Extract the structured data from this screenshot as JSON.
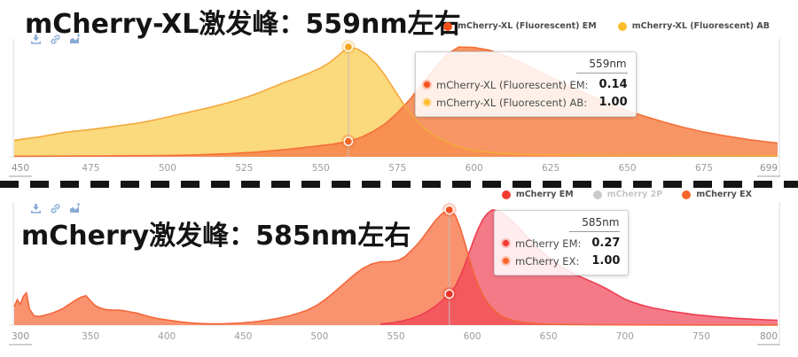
{
  "toolbar": {
    "icons": [
      "download-icon",
      "link-icon",
      "chart-add-icon"
    ],
    "icon_color": "#88abd6"
  },
  "divider": {
    "type": "dashed",
    "color": "#141414"
  },
  "chart_data": [
    {
      "type": "area",
      "title": "mCherry-XL激发峰：559nm左右",
      "x_axis": {
        "min": 450,
        "max": 699,
        "unit": "nm",
        "ticks": [
          450,
          475,
          500,
          525,
          550,
          575,
          600,
          625,
          650,
          675,
          699
        ]
      },
      "y_axis": {
        "min": 0,
        "max": 1,
        "visible": false
      },
      "legend_position": "top-right",
      "grid": false,
      "legend": [
        {
          "label": "mCherry-XL (Fluorescent) EM",
          "color": "#f4511e",
          "muted": false
        },
        {
          "label": "mCherry-XL (Fluorescent) AB",
          "color": "#fbbd2c",
          "muted": false
        }
      ],
      "series": [
        {
          "name": "mCherry-XL (Fluorescent) AB",
          "fill": "#fbd776",
          "stroke": "#f3a93e",
          "fill_opacity": 0.95,
          "points": [
            [
              450,
              0.15
            ],
            [
              455,
              0.17
            ],
            [
              458,
              0.18
            ],
            [
              462,
              0.2
            ],
            [
              466,
              0.22
            ],
            [
              470,
              0.235
            ],
            [
              474,
              0.245
            ],
            [
              478,
              0.26
            ],
            [
              482,
              0.275
            ],
            [
              486,
              0.29
            ],
            [
              490,
              0.305
            ],
            [
              494,
              0.325
            ],
            [
              498,
              0.35
            ],
            [
              502,
              0.375
            ],
            [
              506,
              0.4
            ],
            [
              510,
              0.425
            ],
            [
              514,
              0.45
            ],
            [
              518,
              0.48
            ],
            [
              522,
              0.51
            ],
            [
              526,
              0.545
            ],
            [
              530,
              0.585
            ],
            [
              534,
              0.63
            ],
            [
              538,
              0.675
            ],
            [
              542,
              0.715
            ],
            [
              546,
              0.76
            ],
            [
              550,
              0.81
            ],
            [
              553,
              0.86
            ],
            [
              556,
              0.93
            ],
            [
              559,
              1.0
            ],
            [
              562,
              0.98
            ],
            [
              565,
              0.93
            ],
            [
              568,
              0.85
            ],
            [
              571,
              0.74
            ],
            [
              574,
              0.61
            ],
            [
              577,
              0.48
            ],
            [
              580,
              0.37
            ],
            [
              583,
              0.28
            ],
            [
              586,
              0.21
            ],
            [
              590,
              0.15
            ],
            [
              594,
              0.1
            ],
            [
              598,
              0.07
            ],
            [
              602,
              0.05
            ],
            [
              608,
              0.035
            ],
            [
              615,
              0.025
            ],
            [
              625,
              0.018
            ],
            [
              640,
              0.014
            ],
            [
              660,
              0.012
            ],
            [
              680,
              0.011
            ],
            [
              699,
              0.01
            ]
          ]
        },
        {
          "name": "mCherry-XL (Fluorescent) EM",
          "fill": "#f6824a",
          "stroke": "#f47038",
          "fill_opacity": 0.85,
          "points": [
            [
              450,
              0.005
            ],
            [
              480,
              0.008
            ],
            [
              500,
              0.012
            ],
            [
              510,
              0.018
            ],
            [
              520,
              0.028
            ],
            [
              530,
              0.045
            ],
            [
              540,
              0.07
            ],
            [
              548,
              0.095
            ],
            [
              554,
              0.115
            ],
            [
              559,
              0.14
            ],
            [
              563,
              0.175
            ],
            [
              567,
              0.23
            ],
            [
              571,
              0.3
            ],
            [
              575,
              0.4
            ],
            [
              579,
              0.52
            ],
            [
              583,
              0.66
            ],
            [
              587,
              0.8
            ],
            [
              591,
              0.93
            ],
            [
              595,
              1.0
            ],
            [
              600,
              0.995
            ],
            [
              605,
              0.97
            ],
            [
              611,
              0.91
            ],
            [
              616,
              0.85
            ],
            [
              621,
              0.78
            ],
            [
              627,
              0.7
            ],
            [
              633,
              0.62
            ],
            [
              639,
              0.545
            ],
            [
              645,
              0.475
            ],
            [
              650,
              0.42
            ],
            [
              656,
              0.365
            ],
            [
              662,
              0.315
            ],
            [
              668,
              0.27
            ],
            [
              675,
              0.225
            ],
            [
              682,
              0.19
            ],
            [
              690,
              0.155
            ],
            [
              699,
              0.125
            ]
          ]
        }
      ],
      "hover": {
        "wavelength_nm": 559,
        "line_color": "#bdbdbd",
        "markers": [
          {
            "series": "mCherry-XL (Fluorescent) AB",
            "value": 1.0,
            "color": "#f5a623"
          },
          {
            "series": "mCherry-XL (Fluorescent) EM",
            "value": 0.14,
            "color": "#f26722"
          }
        ]
      },
      "tooltip": {
        "header": "559nm",
        "rows": [
          {
            "label": "mCherry-XL (Fluorescent) EM:",
            "value": "0.14",
            "color": "#f4511e"
          },
          {
            "label": "mCherry-XL (Fluorescent) AB:",
            "value": "1.00",
            "color": "#fbbd2c"
          }
        ]
      }
    },
    {
      "type": "area",
      "title": "mCherry激发峰：585nm左右",
      "x_axis": {
        "min": 300,
        "max": 800,
        "unit": "nm",
        "ticks": [
          300,
          350,
          400,
          450,
          500,
          550,
          600,
          650,
          700,
          750,
          800
        ]
      },
      "y_axis": {
        "min": 0,
        "max": 1,
        "visible": false
      },
      "legend_position": "top-right",
      "grid": false,
      "legend": [
        {
          "label": "mCherry EM",
          "color": "#f23b2f",
          "muted": false
        },
        {
          "label": "mCherry 2P",
          "color": "#c9c9c9",
          "muted": true
        },
        {
          "label": "mCherry EX",
          "color": "#f9662b",
          "muted": false
        }
      ],
      "series": [
        {
          "name": "mCherry EX",
          "fill": "#f8875f",
          "stroke": "#f4663a",
          "fill_opacity": 0.9,
          "points": [
            [
              300,
              0.16
            ],
            [
              302,
              0.22
            ],
            [
              304,
              0.18
            ],
            [
              306,
              0.25
            ],
            [
              308,
              0.28
            ],
            [
              310,
              0.14
            ],
            [
              313,
              0.08
            ],
            [
              316,
              0.075
            ],
            [
              320,
              0.085
            ],
            [
              324,
              0.1
            ],
            [
              328,
              0.12
            ],
            [
              332,
              0.145
            ],
            [
              336,
              0.18
            ],
            [
              340,
              0.215
            ],
            [
              344,
              0.245
            ],
            [
              347,
              0.255
            ],
            [
              350,
              0.21
            ],
            [
              353,
              0.17
            ],
            [
              356,
              0.15
            ],
            [
              360,
              0.135
            ],
            [
              364,
              0.13
            ],
            [
              368,
              0.13
            ],
            [
              372,
              0.125
            ],
            [
              376,
              0.115
            ],
            [
              380,
              0.105
            ],
            [
              384,
              0.09
            ],
            [
              388,
              0.075
            ],
            [
              392,
              0.062
            ],
            [
              396,
              0.052
            ],
            [
              400,
              0.045
            ],
            [
              405,
              0.035
            ],
            [
              410,
              0.027
            ],
            [
              415,
              0.02
            ],
            [
              420,
              0.015
            ],
            [
              425,
              0.012
            ],
            [
              430,
              0.011
            ],
            [
              435,
              0.011
            ],
            [
              440,
              0.013
            ],
            [
              445,
              0.016
            ],
            [
              450,
              0.02
            ],
            [
              456,
              0.027
            ],
            [
              462,
              0.036
            ],
            [
              468,
              0.048
            ],
            [
              474,
              0.062
            ],
            [
              480,
              0.08
            ],
            [
              486,
              0.103
            ],
            [
              492,
              0.13
            ],
            [
              498,
              0.17
            ],
            [
              504,
              0.225
            ],
            [
              510,
              0.29
            ],
            [
              516,
              0.36
            ],
            [
              522,
              0.43
            ],
            [
              528,
              0.49
            ],
            [
              534,
              0.53
            ],
            [
              540,
              0.55
            ],
            [
              546,
              0.55
            ],
            [
              552,
              0.565
            ],
            [
              556,
              0.595
            ],
            [
              560,
              0.645
            ],
            [
              564,
              0.7
            ],
            [
              568,
              0.765
            ],
            [
              572,
              0.84
            ],
            [
              576,
              0.91
            ],
            [
              580,
              0.965
            ],
            [
              585,
              1.0
            ],
            [
              589,
              0.95
            ],
            [
              592,
              0.85
            ],
            [
              595,
              0.72
            ],
            [
              598,
              0.58
            ],
            [
              601,
              0.45
            ],
            [
              604,
              0.345
            ],
            [
              607,
              0.26
            ],
            [
              610,
              0.195
            ],
            [
              614,
              0.135
            ],
            [
              618,
              0.09
            ],
            [
              622,
              0.06
            ],
            [
              627,
              0.04
            ],
            [
              633,
              0.025
            ],
            [
              640,
              0.015
            ],
            [
              650,
              0.008
            ],
            [
              660,
              0.005
            ],
            [
              680,
              0.003
            ],
            [
              700,
              0.002
            ],
            [
              750,
              0.001
            ],
            [
              800,
              0.001
            ]
          ]
        },
        {
          "name": "mCherry EM",
          "fill": "#f04155",
          "stroke": "#ee3d50",
          "fill_opacity": 0.7,
          "points": [
            [
              540,
              0.01
            ],
            [
              548,
              0.02
            ],
            [
              554,
              0.035
            ],
            [
              560,
              0.055
            ],
            [
              566,
              0.085
            ],
            [
              572,
              0.13
            ],
            [
              576,
              0.165
            ],
            [
              580,
              0.21
            ],
            [
              585,
              0.27
            ],
            [
              589,
              0.34
            ],
            [
              592,
              0.42
            ],
            [
              595,
              0.52
            ],
            [
              598,
              0.63
            ],
            [
              601,
              0.74
            ],
            [
              604,
              0.84
            ],
            [
              607,
              0.92
            ],
            [
              610,
              0.97
            ],
            [
              613,
              1.0
            ],
            [
              616,
              0.995
            ],
            [
              620,
              0.97
            ],
            [
              624,
              0.93
            ],
            [
              628,
              0.88
            ],
            [
              633,
              0.81
            ],
            [
              638,
              0.74
            ],
            [
              643,
              0.67
            ],
            [
              648,
              0.61
            ],
            [
              653,
              0.555
            ],
            [
              658,
              0.51
            ],
            [
              664,
              0.465
            ],
            [
              670,
              0.425
            ],
            [
              676,
              0.39
            ],
            [
              682,
              0.355
            ],
            [
              688,
              0.315
            ],
            [
              694,
              0.27
            ],
            [
              700,
              0.225
            ],
            [
              706,
              0.195
            ],
            [
              712,
              0.17
            ],
            [
              718,
              0.15
            ],
            [
              724,
              0.135
            ],
            [
              730,
              0.12
            ],
            [
              738,
              0.105
            ],
            [
              746,
              0.09
            ],
            [
              754,
              0.08
            ],
            [
              762,
              0.07
            ],
            [
              772,
              0.06
            ],
            [
              782,
              0.052
            ],
            [
              792,
              0.046
            ],
            [
              800,
              0.042
            ]
          ]
        }
      ],
      "hover": {
        "wavelength_nm": 585,
        "line_color": "#bdbdbd",
        "markers": [
          {
            "series": "mCherry EX",
            "value": 1.0,
            "color": "#f25022"
          },
          {
            "series": "mCherry EM",
            "value": 0.27,
            "color": "#e73426"
          }
        ]
      },
      "tooltip": {
        "header": "585nm",
        "rows": [
          {
            "label": "mCherry EM:",
            "value": "0.27",
            "color": "#f23b2f"
          },
          {
            "label": "mCherry EX:",
            "value": "1.00",
            "color": "#f9662b"
          }
        ]
      }
    }
  ]
}
